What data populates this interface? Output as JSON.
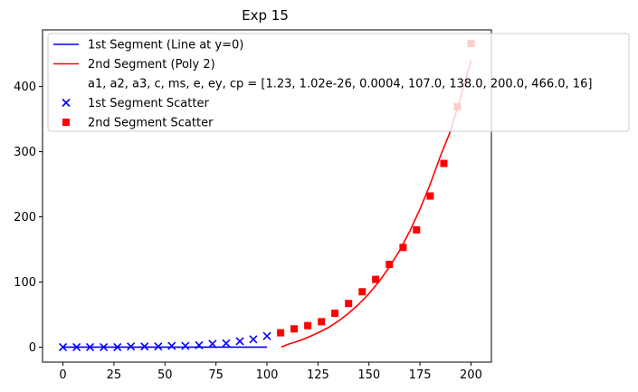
{
  "chart_data": {
    "type": "scatter",
    "title": "Exp 15",
    "xlabel": "",
    "ylabel": "",
    "xlim": [
      -10,
      210
    ],
    "ylim": [
      -23,
      487
    ],
    "xticks": [
      0,
      25,
      50,
      75,
      100,
      125,
      150,
      175,
      200
    ],
    "yticks": [
      0,
      100,
      200,
      300,
      400
    ],
    "grid": false,
    "legend_position": "top-right",
    "series": [
      {
        "name": "1st Segment (Line at y=0)",
        "kind": "line",
        "color": "#0000ff",
        "x": [
          0,
          100
        ],
        "y": [
          0,
          0
        ]
      },
      {
        "name": "2nd Segment (Poly 2)",
        "kind": "line",
        "color": "#ff0000",
        "x": [
          107,
          110,
          115,
          120,
          125,
          130,
          135,
          140,
          145,
          150,
          155,
          160,
          165,
          170,
          175,
          180,
          185,
          190,
          195,
          200
        ],
        "y": [
          0,
          4,
          9,
          15,
          22,
          30,
          40,
          52,
          66,
          82,
          101,
          123,
          148,
          178,
          212,
          250,
          293,
          332,
          385,
          440
        ]
      },
      {
        "name": "a1, a2, a3, c, ms, e, ey, cp = [1.23, 1.02e-26, 0.0004, 107.0, 138.0, 200.0, 466.0, 16]",
        "kind": "note"
      },
      {
        "name": "1st Segment Scatter",
        "kind": "scatter",
        "marker": "x",
        "color": "#0000ff",
        "x": [
          0,
          6.7,
          13.3,
          20,
          26.7,
          33.3,
          40,
          46.7,
          53.3,
          60,
          66.7,
          73.3,
          80,
          86.7,
          93.3,
          100
        ],
        "y": [
          0,
          0,
          0,
          0,
          0,
          1,
          1,
          1,
          2,
          2,
          3,
          5,
          6,
          9,
          12,
          17
        ]
      },
      {
        "name": "2nd Segment Scatter",
        "kind": "scatter",
        "marker": "s",
        "color": "#ff0000",
        "x": [
          106.7,
          113.3,
          120,
          126.7,
          133.3,
          140,
          146.7,
          153.3,
          160,
          166.7,
          173.3,
          180,
          186.7,
          193.3,
          200
        ],
        "y": [
          22,
          28,
          33,
          39,
          52,
          67,
          85,
          104,
          127,
          153,
          180,
          232,
          282,
          369,
          466
        ]
      }
    ]
  }
}
